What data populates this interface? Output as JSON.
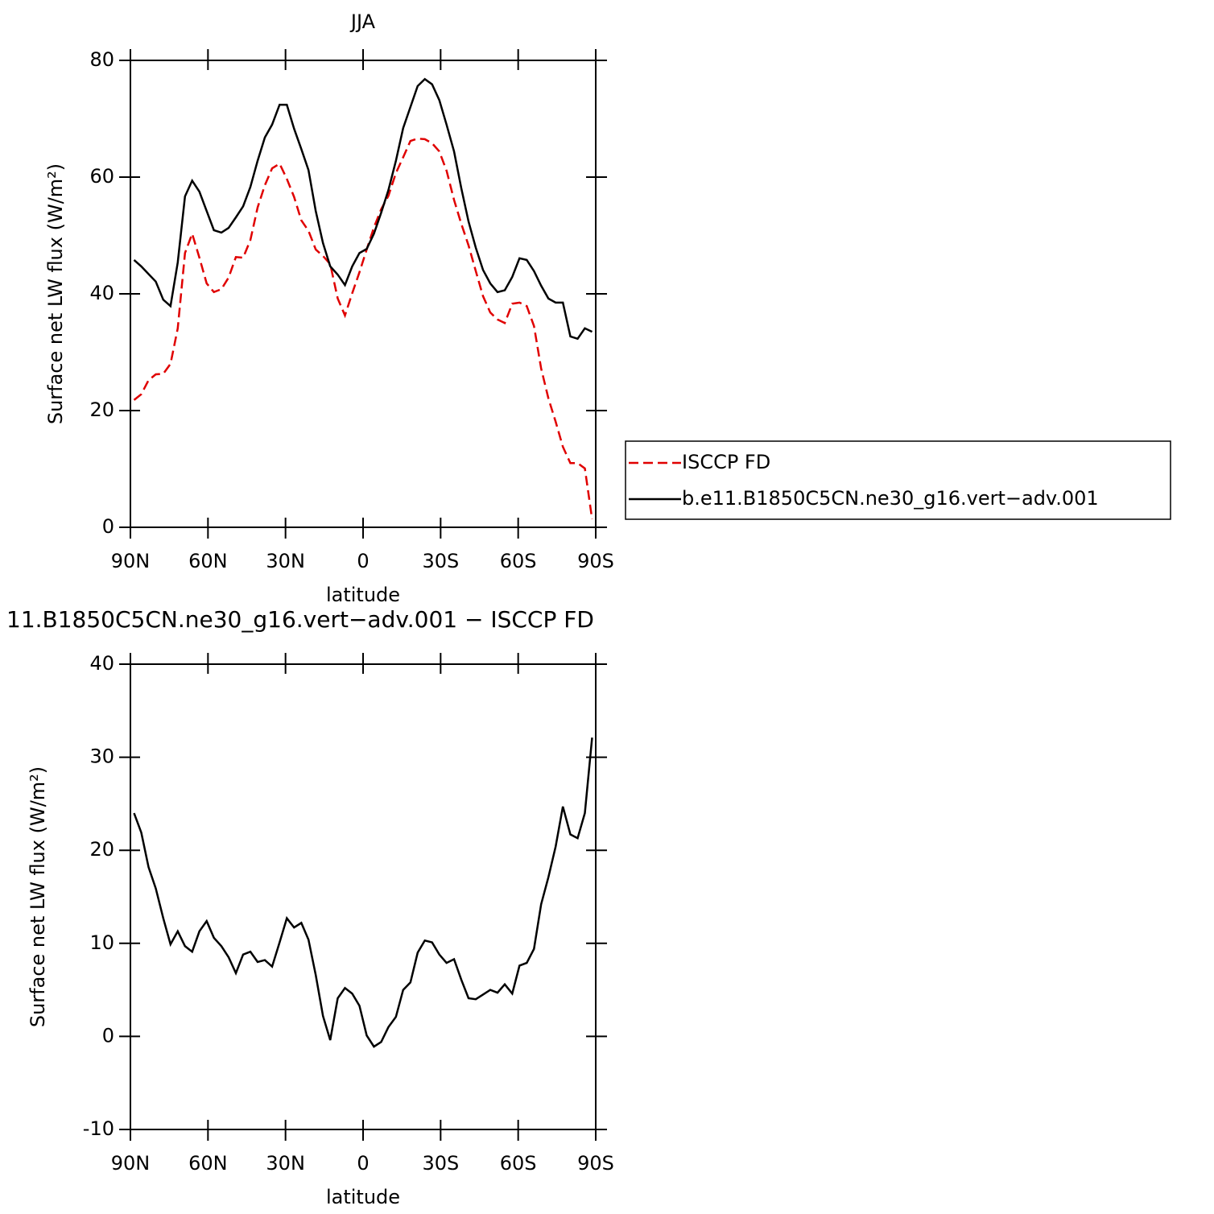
{
  "chart_data": [
    {
      "type": "line",
      "title": "JJA",
      "xlabel": "latitude",
      "ylabel": "Surface net LW flux (W/m²)",
      "x": [
        88.6,
        85.8,
        83.0,
        80.2,
        77.3,
        74.5,
        71.7,
        68.9,
        66.1,
        63.3,
        60.5,
        57.7,
        54.8,
        52.0,
        49.2,
        46.4,
        43.6,
        40.8,
        38.0,
        35.2,
        32.3,
        29.5,
        26.7,
        23.9,
        21.1,
        18.3,
        15.5,
        12.7,
        9.8,
        7.0,
        4.2,
        1.4,
        -1.4,
        -4.2,
        -7.0,
        -9.8,
        -12.7,
        -15.5,
        -18.3,
        -21.1,
        -23.9,
        -26.7,
        -29.5,
        -32.3,
        -35.2,
        -38.0,
        -40.8,
        -43.6,
        -46.4,
        -49.2,
        -52.0,
        -54.8,
        -57.7,
        -60.5,
        -63.3,
        -66.1,
        -68.9,
        -71.7,
        -74.5,
        -77.3,
        -80.2,
        -83.0,
        -85.8,
        -88.6
      ],
      "series": [
        {
          "name": "ISCCP FD",
          "color": "#e00000",
          "dashed": true,
          "values": [
            21.8,
            22.8,
            25.2,
            26.2,
            26.3,
            28.0,
            34.1,
            47.0,
            50.3,
            46.2,
            41.8,
            40.3,
            40.8,
            42.8,
            46.3,
            46.2,
            49.2,
            54.8,
            58.6,
            61.5,
            62.3,
            59.7,
            56.6,
            52.6,
            50.8,
            47.6,
            46.5,
            45.1,
            39.2,
            36.3,
            40.1,
            43.7,
            47.6,
            51.4,
            54.5,
            56.8,
            60.7,
            63.4,
            66.2,
            66.6,
            66.5,
            65.8,
            64.4,
            61.1,
            56.1,
            52.0,
            48.3,
            43.9,
            39.6,
            36.8,
            35.6,
            35.0,
            38.3,
            38.5,
            37.9,
            34.5,
            27.2,
            22.1,
            18.1,
            13.8,
            11.0,
            11.0,
            10.1,
            1.4
          ]
        },
        {
          "name": "b.e11.B1850C5CN.ne30_g16.vert−adv.001",
          "color": "#000000",
          "dashed": false,
          "values": [
            45.8,
            44.7,
            43.4,
            42.1,
            39.0,
            37.9,
            45.4,
            56.7,
            59.4,
            57.5,
            54.2,
            50.9,
            50.5,
            51.3,
            53.1,
            55.0,
            58.3,
            62.8,
            66.8,
            69.0,
            72.4,
            72.4,
            68.3,
            64.8,
            61.2,
            54.2,
            48.7,
            44.7,
            43.3,
            41.5,
            44.7,
            47.0,
            47.7,
            50.3,
            53.9,
            57.8,
            62.8,
            68.4,
            72.0,
            75.6,
            76.8,
            75.9,
            73.2,
            69.0,
            64.4,
            58.1,
            52.4,
            47.9,
            44.1,
            41.8,
            40.3,
            40.6,
            42.9,
            46.1,
            45.8,
            43.9,
            41.4,
            39.2,
            38.5,
            38.5,
            32.7,
            32.3,
            34.1,
            33.5
          ]
        }
      ],
      "xlim": [
        90,
        -90
      ],
      "xticks": [
        {
          "value": 90,
          "label": "90N"
        },
        {
          "value": 60,
          "label": "60N"
        },
        {
          "value": 30,
          "label": "30N"
        },
        0,
        {
          "value": -30,
          "label": "30S"
        },
        {
          "value": -60,
          "label": "60S"
        },
        {
          "value": -90,
          "label": "90S"
        }
      ],
      "ylim": [
        0,
        80
      ],
      "yticks": [
        0,
        20,
        40,
        60,
        80
      ],
      "legend": "right"
    },
    {
      "type": "line",
      "title": "11.B1850C5CN.ne30_g16.vert−adv.001 − ISCCP FD",
      "xlabel": "latitude",
      "ylabel": "Surface net LW flux (W/m²)",
      "x": [
        88.6,
        85.8,
        83.0,
        80.2,
        77.3,
        74.5,
        71.7,
        68.9,
        66.1,
        63.3,
        60.5,
        57.7,
        54.8,
        52.0,
        49.2,
        46.4,
        43.6,
        40.8,
        38.0,
        35.2,
        32.3,
        29.5,
        26.7,
        23.9,
        21.1,
        18.3,
        15.5,
        12.7,
        9.8,
        7.0,
        4.2,
        1.4,
        -1.4,
        -4.2,
        -7.0,
        -9.8,
        -12.7,
        -15.5,
        -18.3,
        -21.1,
        -23.9,
        -26.7,
        -29.5,
        -32.3,
        -35.2,
        -38.0,
        -40.8,
        -43.6,
        -46.4,
        -49.2,
        -52.0,
        -54.8,
        -57.7,
        -60.5,
        -63.3,
        -66.1,
        -68.9,
        -71.7,
        -74.5,
        -77.3,
        -80.2,
        -83.0,
        -85.8,
        -88.6
      ],
      "color": "#000000",
      "values": [
        24.0,
        21.9,
        18.2,
        15.9,
        12.7,
        9.9,
        11.3,
        9.7,
        9.1,
        11.3,
        12.4,
        10.6,
        9.7,
        8.5,
        6.8,
        8.8,
        9.1,
        8.0,
        8.2,
        7.5,
        10.1,
        12.7,
        11.7,
        12.2,
        10.4,
        6.6,
        2.2,
        -0.4,
        4.1,
        5.2,
        4.6,
        3.3,
        0.1,
        -1.1,
        -0.6,
        1.0,
        2.1,
        5.0,
        5.8,
        9.0,
        10.3,
        10.1,
        8.8,
        7.9,
        8.3,
        6.1,
        4.1,
        4.0,
        4.5,
        5.0,
        4.7,
        5.6,
        4.6,
        7.6,
        7.9,
        9.4,
        14.2,
        17.1,
        20.4,
        24.7,
        21.7,
        21.3,
        24.0,
        32.1
      ],
      "xlim": [
        90,
        -90
      ],
      "xticks": [
        {
          "value": 90,
          "label": "90N"
        },
        {
          "value": 60,
          "label": "60N"
        },
        {
          "value": 30,
          "label": "30N"
        },
        0,
        {
          "value": -30,
          "label": "30S"
        },
        {
          "value": -60,
          "label": "60S"
        },
        {
          "value": -90,
          "label": "90S"
        }
      ],
      "ylim": [
        -10,
        40
      ],
      "yticks": [
        -10,
        0,
        10,
        20,
        30,
        40
      ]
    }
  ]
}
